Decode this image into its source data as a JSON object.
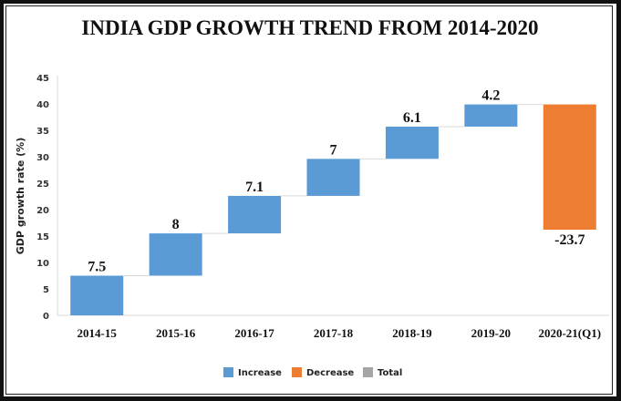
{
  "chart_data": {
    "type": "waterfall",
    "title": "INDIA GDP GROWTH TREND FROM 2014-2020",
    "xlabel": "",
    "ylabel": "GDP growth rate (%)",
    "ylim": [
      0,
      45
    ],
    "yticks": [
      0,
      5,
      10,
      15,
      20,
      25,
      30,
      35,
      40,
      45
    ],
    "categories": [
      "2014-15",
      "2015-16",
      "2016-17",
      "2017-18",
      "2018-19",
      "2019-20",
      "2020-21(Q1)"
    ],
    "values": [
      7.5,
      8,
      7.1,
      7,
      6.1,
      4.2,
      -23.7
    ],
    "data_labels": [
      "7.5",
      "8",
      "7.1",
      "7",
      "6.1",
      "4.2",
      "-23.7"
    ],
    "legend": {
      "position": "bottom",
      "entries": [
        {
          "label": "Increase",
          "color": "#5b9bd5"
        },
        {
          "label": "Decrease",
          "color": "#ed7d31"
        },
        {
          "label": "Total",
          "color": "#a5a5a5"
        }
      ]
    },
    "colors": {
      "increase": "#5b9bd5",
      "decrease": "#ed7d31",
      "total": "#a5a5a5",
      "connector": "#d9d9d9",
      "axis": "#d9d9d9"
    },
    "grid": false
  }
}
